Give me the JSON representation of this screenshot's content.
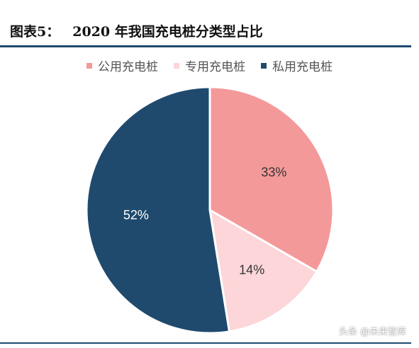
{
  "header": {
    "figure_label": "图表5：",
    "figure_title": "2020 年我国充电桩分类型占比"
  },
  "chart_data": {
    "type": "pie",
    "title": "2020 年我国充电桩分类型占比",
    "legend_position": "top",
    "slices": [
      {
        "label": "公用充电桩",
        "value": 33,
        "display": "33%",
        "color": "#f4999a"
      },
      {
        "label": "专用充电桩",
        "value": 14,
        "display": "14%",
        "color": "#fcd6d8"
      },
      {
        "label": "私用充电桩",
        "value": 52,
        "display": "52%",
        "color": "#1f4a6e"
      }
    ]
  },
  "watermark": "头条 @未来智库"
}
